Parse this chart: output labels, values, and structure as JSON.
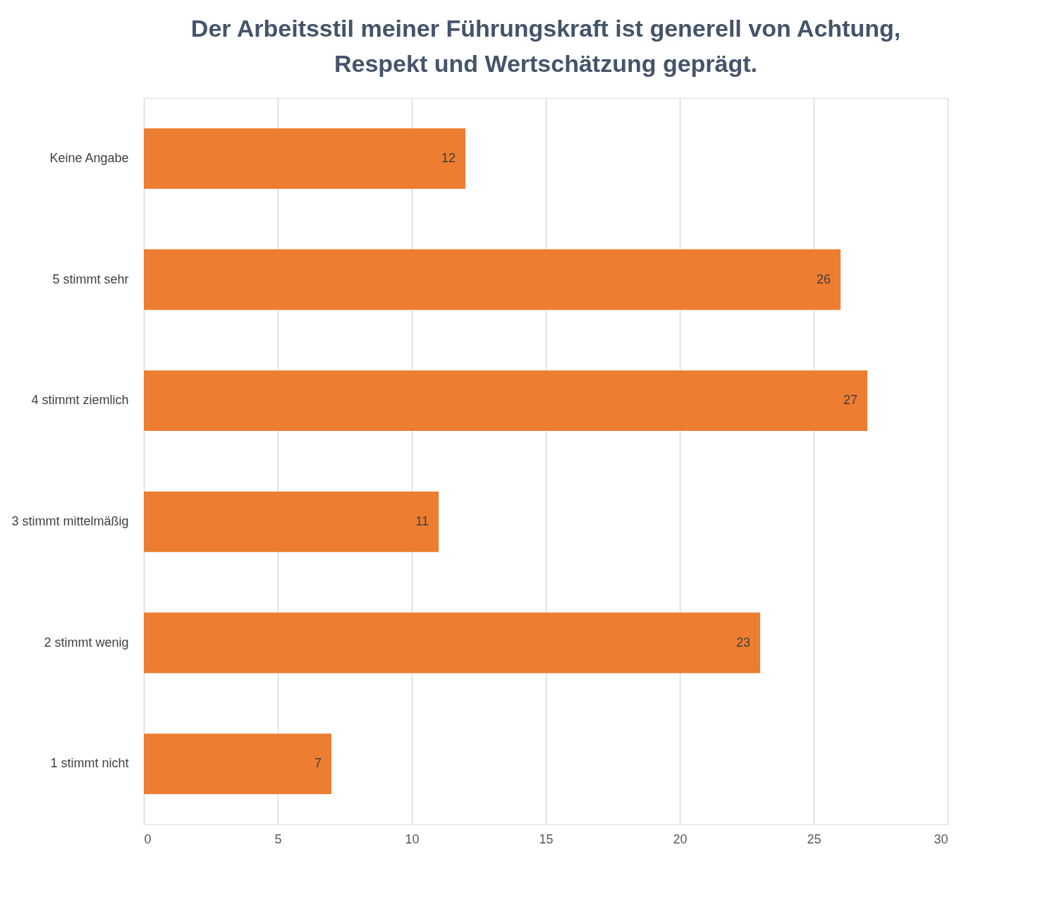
{
  "chart_data": {
    "type": "bar",
    "orientation": "horizontal",
    "title": "Der Arbeitsstil meiner Führungskraft ist generell von Achtung, Respekt und Wertschätzung geprägt.",
    "categories": [
      "Keine Angabe",
      "5 stimmt sehr",
      "4 stimmt ziemlich",
      "3 stimmt mittelmäßig",
      "2 stimmt wenig",
      "1 stimmt nicht"
    ],
    "values": [
      12,
      26,
      27,
      11,
      23,
      7
    ],
    "color": "#ed7d31",
    "xlim": [
      0,
      30
    ],
    "xticks": [
      0,
      5,
      10,
      15,
      20,
      25,
      30
    ],
    "grid": "x",
    "data_labels": true
  }
}
